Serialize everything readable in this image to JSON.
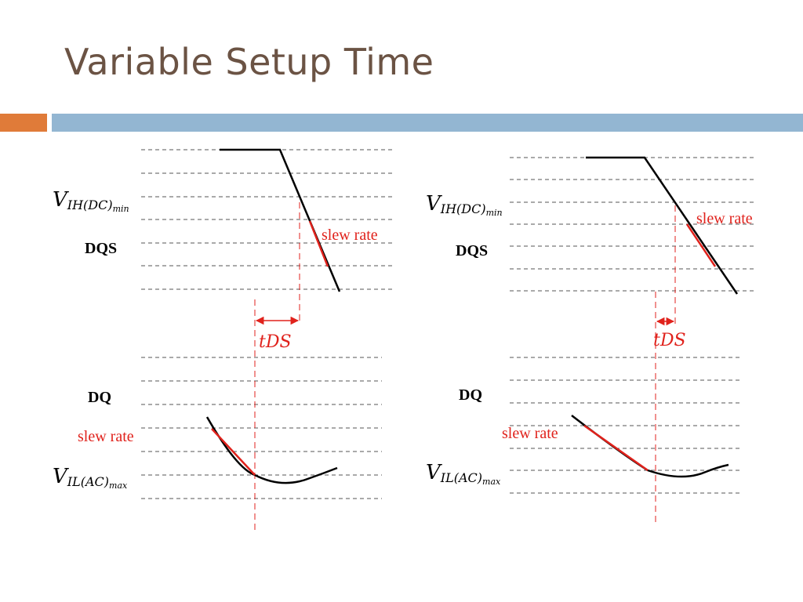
{
  "slide": {
    "title": "Variable Setup Time"
  },
  "panels": [
    {
      "dqs_label": "DQS",
      "dq_label": "DQ",
      "vih_main": "V",
      "vih_sub": "IH(DC)",
      "vih_subsub": "min",
      "vil_main": "V",
      "vil_sub": "IL(AC)",
      "vil_subsub": "max",
      "dqs_slew_label": "slew rate",
      "dq_slew_label": "slew rate",
      "tds_label": "tDS"
    },
    {
      "dqs_label": "DQS",
      "dq_label": "DQ",
      "vih_main": "V",
      "vih_sub": "IH(DC)",
      "vih_subsub": "min",
      "vil_main": "V",
      "vil_sub": "IL(AC)",
      "vil_subsub": "max",
      "dqs_slew_label": "slew rate",
      "dq_slew_label": "slew rate",
      "tds_label": "tDS"
    }
  ],
  "colors": {
    "title": "#6b5344",
    "accent_orange": "#e07b39",
    "accent_blue": "#93b6d2",
    "highlight_red": "#e0221c"
  }
}
